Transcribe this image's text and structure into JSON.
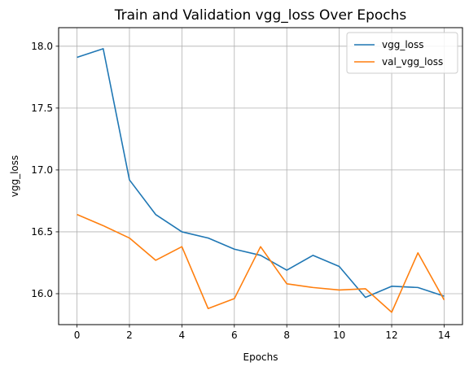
{
  "chart_data": {
    "type": "line",
    "title": "Train and Validation vgg_loss Over Epochs",
    "xlabel": "Epochs",
    "ylabel": "vgg_loss",
    "x": [
      0,
      1,
      2,
      3,
      4,
      5,
      6,
      7,
      8,
      9,
      10,
      11,
      12,
      13,
      14
    ],
    "xlim": [
      -0.7,
      14.7
    ],
    "ylim": [
      15.75,
      18.15
    ],
    "xticks": [
      0,
      2,
      4,
      6,
      8,
      10,
      12,
      14
    ],
    "yticks": [
      16.0,
      16.5,
      17.0,
      17.5,
      18.0
    ],
    "ytick_labels": [
      "16.0",
      "16.5",
      "17.0",
      "17.5",
      "18.0"
    ],
    "grid": true,
    "legend_position": "top-right",
    "series": [
      {
        "name": "vgg_loss",
        "color": "#1f77b4",
        "values": [
          17.91,
          17.98,
          16.92,
          16.64,
          16.5,
          16.45,
          16.36,
          16.31,
          16.19,
          16.31,
          16.22,
          15.97,
          16.06,
          16.05,
          15.98
        ]
      },
      {
        "name": "val_vgg_loss",
        "color": "#ff7f0e",
        "values": [
          16.64,
          16.55,
          16.45,
          16.27,
          16.38,
          15.88,
          15.96,
          16.38,
          16.08,
          16.05,
          16.03,
          16.04,
          15.85,
          16.33,
          15.95
        ]
      }
    ]
  }
}
